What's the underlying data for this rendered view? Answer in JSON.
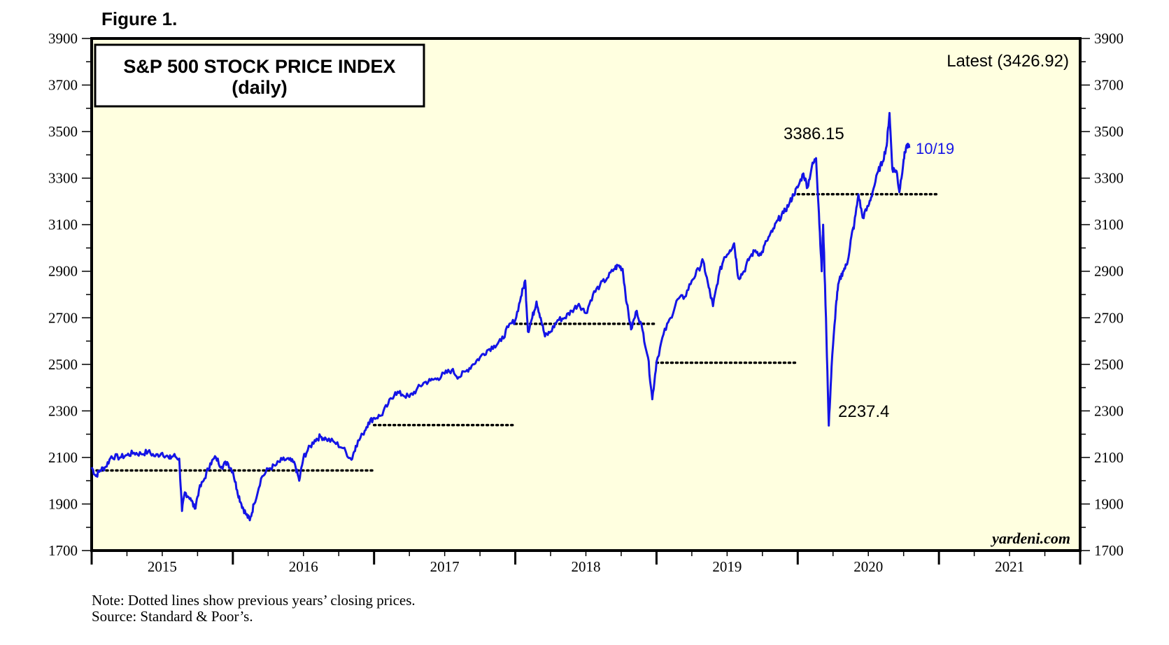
{
  "figure_label": "Figure 1.",
  "chart_data": {
    "type": "line",
    "title": "S&P 500 STOCK PRICE INDEX",
    "subtitle": "(daily)",
    "ylim": [
      1700,
      3900
    ],
    "yticks": [
      1700,
      1900,
      2100,
      2300,
      2500,
      2700,
      2900,
      3100,
      3300,
      3500,
      3700,
      3900
    ],
    "years": [
      "2015",
      "2016",
      "2017",
      "2018",
      "2019",
      "2020",
      "2021"
    ],
    "latest_label": "Latest (3426.92)",
    "latest_date": "10/19",
    "annotations": [
      {
        "text": "3386.15",
        "x": 2020.12,
        "y": 3386.15
      },
      {
        "text": "2237.4",
        "x": 2020.22,
        "y": 2237.4
      }
    ],
    "dotted_lines": [
      {
        "from": 2015.0,
        "to": 2017.0,
        "y": 2044
      },
      {
        "from": 2017.0,
        "to": 2018.0,
        "y": 2239
      },
      {
        "from": 2018.0,
        "to": 2019.0,
        "y": 2674
      },
      {
        "from": 2019.0,
        "to": 2020.0,
        "y": 2507
      },
      {
        "from": 2020.0,
        "to": 2021.0,
        "y": 3231
      }
    ],
    "series": [
      {
        "color": "#1414e6",
        "points": [
          [
            2015.0,
            2058
          ],
          [
            2015.03,
            2020
          ],
          [
            2015.06,
            2045
          ],
          [
            2015.1,
            2060
          ],
          [
            2015.14,
            2105
          ],
          [
            2015.2,
            2100
          ],
          [
            2015.25,
            2110
          ],
          [
            2015.3,
            2120
          ],
          [
            2015.35,
            2115
          ],
          [
            2015.4,
            2125
          ],
          [
            2015.45,
            2105
          ],
          [
            2015.5,
            2120
          ],
          [
            2015.55,
            2095
          ],
          [
            2015.58,
            2108
          ],
          [
            2015.62,
            2095
          ],
          [
            2015.64,
            1870
          ],
          [
            2015.66,
            1950
          ],
          [
            2015.7,
            1925
          ],
          [
            2015.73,
            1880
          ],
          [
            2015.76,
            1960
          ],
          [
            2015.8,
            2010
          ],
          [
            2015.84,
            2075
          ],
          [
            2015.88,
            2100
          ],
          [
            2015.92,
            2060
          ],
          [
            2015.96,
            2080
          ],
          [
            2016.0,
            2040
          ],
          [
            2016.03,
            1960
          ],
          [
            2016.06,
            1900
          ],
          [
            2016.09,
            1860
          ],
          [
            2016.12,
            1830
          ],
          [
            2016.15,
            1900
          ],
          [
            2016.2,
            2010
          ],
          [
            2016.25,
            2050
          ],
          [
            2016.3,
            2065
          ],
          [
            2016.35,
            2090
          ],
          [
            2016.4,
            2090
          ],
          [
            2016.44,
            2070
          ],
          [
            2016.47,
            2000
          ],
          [
            2016.5,
            2100
          ],
          [
            2016.53,
            2130
          ],
          [
            2016.58,
            2175
          ],
          [
            2016.62,
            2190
          ],
          [
            2016.66,
            2180
          ],
          [
            2016.72,
            2165
          ],
          [
            2016.78,
            2140
          ],
          [
            2016.84,
            2090
          ],
          [
            2016.87,
            2150
          ],
          [
            2016.92,
            2200
          ],
          [
            2016.96,
            2250
          ],
          [
            2017.0,
            2270
          ],
          [
            2017.05,
            2280
          ],
          [
            2017.1,
            2330
          ],
          [
            2017.15,
            2380
          ],
          [
            2017.2,
            2370
          ],
          [
            2017.25,
            2360
          ],
          [
            2017.3,
            2390
          ],
          [
            2017.35,
            2420
          ],
          [
            2017.4,
            2430
          ],
          [
            2017.45,
            2440
          ],
          [
            2017.5,
            2460
          ],
          [
            2017.55,
            2475
          ],
          [
            2017.6,
            2445
          ],
          [
            2017.65,
            2470
          ],
          [
            2017.7,
            2500
          ],
          [
            2017.75,
            2530
          ],
          [
            2017.8,
            2560
          ],
          [
            2017.85,
            2580
          ],
          [
            2017.9,
            2600
          ],
          [
            2017.95,
            2660
          ],
          [
            2018.0,
            2690
          ],
          [
            2018.04,
            2790
          ],
          [
            2018.07,
            2860
          ],
          [
            2018.09,
            2640
          ],
          [
            2018.12,
            2700
          ],
          [
            2018.15,
            2770
          ],
          [
            2018.18,
            2700
          ],
          [
            2018.21,
            2620
          ],
          [
            2018.25,
            2640
          ],
          [
            2018.3,
            2690
          ],
          [
            2018.35,
            2700
          ],
          [
            2018.4,
            2730
          ],
          [
            2018.45,
            2760
          ],
          [
            2018.5,
            2720
          ],
          [
            2018.55,
            2800
          ],
          [
            2018.6,
            2840
          ],
          [
            2018.65,
            2870
          ],
          [
            2018.7,
            2910
          ],
          [
            2018.73,
            2925
          ],
          [
            2018.76,
            2910
          ],
          [
            2018.79,
            2760
          ],
          [
            2018.82,
            2650
          ],
          [
            2018.86,
            2730
          ],
          [
            2018.9,
            2650
          ],
          [
            2018.94,
            2530
          ],
          [
            2018.97,
            2350
          ],
          [
            2019.0,
            2510
          ],
          [
            2019.05,
            2630
          ],
          [
            2019.1,
            2700
          ],
          [
            2019.15,
            2780
          ],
          [
            2019.2,
            2790
          ],
          [
            2019.25,
            2860
          ],
          [
            2019.3,
            2910
          ],
          [
            2019.33,
            2945
          ],
          [
            2019.37,
            2830
          ],
          [
            2019.4,
            2750
          ],
          [
            2019.44,
            2880
          ],
          [
            2019.48,
            2960
          ],
          [
            2019.52,
            2990
          ],
          [
            2019.55,
            3020
          ],
          [
            2019.58,
            2870
          ],
          [
            2019.62,
            2900
          ],
          [
            2019.66,
            2960
          ],
          [
            2019.7,
            2990
          ],
          [
            2019.74,
            2970
          ],
          [
            2019.78,
            3030
          ],
          [
            2019.82,
            3070
          ],
          [
            2019.86,
            3120
          ],
          [
            2019.9,
            3150
          ],
          [
            2019.94,
            3190
          ],
          [
            2019.97,
            3230
          ],
          [
            2020.0,
            3260
          ],
          [
            2020.04,
            3320
          ],
          [
            2020.07,
            3260
          ],
          [
            2020.1,
            3350
          ],
          [
            2020.13,
            3386
          ],
          [
            2020.15,
            3150
          ],
          [
            2020.17,
            2900
          ],
          [
            2020.18,
            3100
          ],
          [
            2020.2,
            2700
          ],
          [
            2020.22,
            2237
          ],
          [
            2020.24,
            2490
          ],
          [
            2020.27,
            2750
          ],
          [
            2020.29,
            2850
          ],
          [
            2020.32,
            2900
          ],
          [
            2020.35,
            2930
          ],
          [
            2020.38,
            3050
          ],
          [
            2020.4,
            3100
          ],
          [
            2020.43,
            3230
          ],
          [
            2020.46,
            3130
          ],
          [
            2020.5,
            3180
          ],
          [
            2020.53,
            3240
          ],
          [
            2020.57,
            3330
          ],
          [
            2020.6,
            3370
          ],
          [
            2020.63,
            3440
          ],
          [
            2020.65,
            3580
          ],
          [
            2020.67,
            3340
          ],
          [
            2020.7,
            3330
          ],
          [
            2020.72,
            3240
          ],
          [
            2020.75,
            3380
          ],
          [
            2020.77,
            3440
          ],
          [
            2020.79,
            3430
          ]
        ]
      }
    ]
  },
  "branding": "yardeni.com",
  "notes": {
    "line1": "Note: Dotted lines show previous years’ closing prices.",
    "line2": "Source: Standard & Poor’s."
  }
}
